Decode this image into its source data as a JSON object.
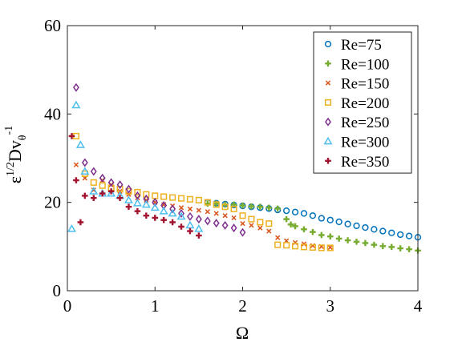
{
  "chart_data": {
    "type": "scatter",
    "xlabel": "Ω",
    "ylabel": {
      "base": "ε",
      "sup1": "1/2",
      "mid": "Dv",
      "sub": "θ",
      "sup2": "-1"
    },
    "xlim": [
      0,
      4
    ],
    "ylim": [
      0,
      60
    ],
    "xticks": [
      0,
      1,
      2,
      3,
      4
    ],
    "yticks": [
      0,
      20,
      40,
      60
    ],
    "grid": false,
    "legend_position": "top-right",
    "series": [
      {
        "name": "Re=75",
        "marker": "circle",
        "color": "#0072BD",
        "points": [
          [
            1.6,
            20.0
          ],
          [
            1.7,
            19.8
          ],
          [
            1.8,
            19.6
          ],
          [
            1.9,
            19.4
          ],
          [
            2.0,
            19.2
          ],
          [
            2.1,
            19.0
          ],
          [
            2.2,
            18.8
          ],
          [
            2.3,
            18.6
          ],
          [
            2.4,
            18.3
          ],
          [
            2.5,
            18.1
          ],
          [
            2.6,
            17.8
          ],
          [
            2.7,
            17.5
          ],
          [
            2.8,
            17.0
          ],
          [
            2.9,
            16.4
          ],
          [
            3.0,
            16.0
          ],
          [
            3.1,
            15.6
          ],
          [
            3.2,
            15.1
          ],
          [
            3.3,
            14.7
          ],
          [
            3.4,
            14.3
          ],
          [
            3.5,
            13.9
          ],
          [
            3.6,
            13.5
          ],
          [
            3.7,
            13.1
          ],
          [
            3.8,
            12.7
          ],
          [
            3.9,
            12.4
          ],
          [
            4.0,
            12.1
          ]
        ]
      },
      {
        "name": "Re=100",
        "marker": "plus",
        "color": "#77AC30",
        "points": [
          [
            1.6,
            19.7
          ],
          [
            1.7,
            19.7
          ],
          [
            1.8,
            19.5
          ],
          [
            1.9,
            19.5
          ],
          [
            2.0,
            19.3
          ],
          [
            2.1,
            19.1
          ],
          [
            2.2,
            19.0
          ],
          [
            2.3,
            18.8
          ],
          [
            2.4,
            18.6
          ],
          [
            2.5,
            16.2
          ],
          [
            2.55,
            15.0
          ],
          [
            2.6,
            14.6
          ],
          [
            2.7,
            13.9
          ],
          [
            2.8,
            13.3
          ],
          [
            2.9,
            12.6
          ],
          [
            3.0,
            12.3
          ],
          [
            3.1,
            11.8
          ],
          [
            3.2,
            11.4
          ],
          [
            3.3,
            11.1
          ],
          [
            3.4,
            10.8
          ],
          [
            3.5,
            10.4
          ],
          [
            3.6,
            10.1
          ],
          [
            3.7,
            9.9
          ],
          [
            3.8,
            9.6
          ],
          [
            3.9,
            9.4
          ],
          [
            4.0,
            9.1
          ]
        ]
      },
      {
        "name": "Re=150",
        "marker": "x",
        "color": "#D95319",
        "points": [
          [
            0.1,
            28.5
          ],
          [
            0.2,
            25.5
          ],
          [
            0.3,
            22.8
          ],
          [
            0.4,
            25.0
          ],
          [
            0.5,
            24.0
          ],
          [
            0.6,
            22.5
          ],
          [
            0.7,
            21.8
          ],
          [
            0.8,
            21.0
          ],
          [
            0.9,
            20.5
          ],
          [
            1.0,
            20.0
          ],
          [
            1.1,
            19.5
          ],
          [
            1.2,
            19.2
          ],
          [
            1.3,
            18.8
          ],
          [
            1.4,
            18.5
          ],
          [
            1.5,
            18.2
          ],
          [
            1.6,
            17.9
          ],
          [
            1.7,
            17.5
          ],
          [
            1.8,
            17.0
          ],
          [
            1.9,
            16.5
          ],
          [
            2.0,
            15.2
          ],
          [
            2.1,
            14.8
          ],
          [
            2.2,
            14.2
          ],
          [
            2.3,
            13.5
          ],
          [
            2.4,
            12.0
          ],
          [
            2.5,
            11.3
          ],
          [
            2.6,
            10.9
          ],
          [
            2.7,
            10.6
          ],
          [
            2.8,
            10.2
          ],
          [
            2.9,
            10.0
          ],
          [
            3.0,
            9.8
          ]
        ]
      },
      {
        "name": "Re=200",
        "marker": "square",
        "color": "#EDB120",
        "points": [
          [
            0.1,
            35.0
          ],
          [
            0.2,
            26.5
          ],
          [
            0.3,
            24.5
          ],
          [
            0.4,
            23.8
          ],
          [
            0.5,
            23.3
          ],
          [
            0.6,
            23.0
          ],
          [
            0.7,
            22.5
          ],
          [
            0.8,
            22.3
          ],
          [
            0.9,
            21.8
          ],
          [
            1.0,
            21.5
          ],
          [
            1.1,
            21.3
          ],
          [
            1.2,
            21.1
          ],
          [
            1.3,
            20.9
          ],
          [
            1.4,
            20.7
          ],
          [
            1.5,
            20.5
          ],
          [
            1.6,
            20.0
          ],
          [
            1.7,
            19.5
          ],
          [
            1.8,
            19.0
          ],
          [
            1.9,
            18.5
          ],
          [
            2.0,
            17.0
          ],
          [
            2.1,
            16.2
          ],
          [
            2.2,
            15.5
          ],
          [
            2.3,
            15.2
          ],
          [
            2.4,
            10.4
          ],
          [
            2.5,
            10.3
          ],
          [
            2.6,
            10.1
          ],
          [
            2.7,
            9.9
          ],
          [
            2.8,
            9.8
          ],
          [
            2.9,
            9.7
          ],
          [
            3.0,
            9.7
          ]
        ]
      },
      {
        "name": "Re=250",
        "marker": "diamond",
        "color": "#7E2F8E",
        "points": [
          [
            0.1,
            46.0
          ],
          [
            0.2,
            29.0
          ],
          [
            0.3,
            27.0
          ],
          [
            0.4,
            25.5
          ],
          [
            0.5,
            24.5
          ],
          [
            0.6,
            24.0
          ],
          [
            0.7,
            23.0
          ],
          [
            0.8,
            21.5
          ],
          [
            0.9,
            20.8
          ],
          [
            1.0,
            20.0
          ],
          [
            1.1,
            19.3
          ],
          [
            1.2,
            18.5
          ],
          [
            1.3,
            17.5
          ],
          [
            1.4,
            16.8
          ],
          [
            1.5,
            16.2
          ],
          [
            1.6,
            15.8
          ],
          [
            1.7,
            15.3
          ],
          [
            1.8,
            14.8
          ],
          [
            1.9,
            14.2
          ],
          [
            2.0,
            13.2
          ]
        ]
      },
      {
        "name": "Re=300",
        "marker": "triangle",
        "color": "#4DBEEE",
        "points": [
          [
            0.05,
            14.0
          ],
          [
            0.1,
            42.0
          ],
          [
            0.15,
            33.0
          ],
          [
            0.2,
            27.0
          ],
          [
            0.3,
            22.5
          ],
          [
            0.4,
            22.0
          ],
          [
            0.5,
            22.0
          ],
          [
            0.6,
            21.5
          ],
          [
            0.7,
            20.5
          ],
          [
            0.8,
            19.8
          ],
          [
            0.9,
            19.5
          ],
          [
            1.0,
            18.8
          ],
          [
            1.1,
            18.0
          ],
          [
            1.2,
            17.5
          ],
          [
            1.3,
            16.8
          ],
          [
            1.4,
            14.8
          ],
          [
            1.5,
            14.0
          ]
        ]
      },
      {
        "name": "Re=350",
        "marker": "plus",
        "color": "#A2142F",
        "points": [
          [
            0.05,
            35.0
          ],
          [
            0.1,
            25.0
          ],
          [
            0.15,
            15.5
          ],
          [
            0.2,
            21.5
          ],
          [
            0.3,
            21.0
          ],
          [
            0.4,
            22.0
          ],
          [
            0.5,
            22.5
          ],
          [
            0.6,
            21.0
          ],
          [
            0.7,
            19.0
          ],
          [
            0.8,
            18.0
          ],
          [
            0.9,
            17.0
          ],
          [
            1.0,
            16.5
          ],
          [
            1.1,
            16.0
          ],
          [
            1.2,
            15.5
          ],
          [
            1.3,
            14.5
          ],
          [
            1.4,
            13.5
          ],
          [
            1.5,
            12.5
          ]
        ]
      }
    ]
  }
}
